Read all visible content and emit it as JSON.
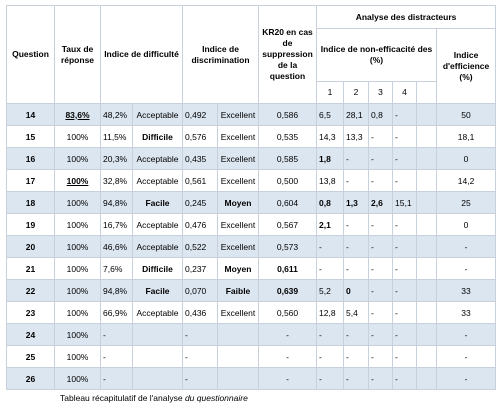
{
  "header": {
    "question": "Question",
    "taux": "Taux de réponse",
    "difficulte": "Indice de difficulté",
    "discrimination": "Indice de discrimination",
    "kr20": "KR20 en cas de suppression de la question",
    "distracteurs": "Analyse des distracteurs",
    "non_efficacite": "Indice de non-efficacité des (%)",
    "distractor_numbers": [
      "1",
      "2",
      "3",
      "4"
    ],
    "efficience": "Indice d'efficience (%)"
  },
  "table": {
    "rows": [
      [
        "14",
        "83,6%",
        "48,2%",
        "Acceptable",
        "0,492",
        "Excellent",
        "0,586",
        "6,5",
        "28,1",
        "0,8",
        "-",
        "50"
      ],
      [
        "15",
        "100%",
        "11,5%",
        "Difficile",
        "0,576",
        "Excellent",
        "0,535",
        "14,3",
        "13,3",
        "-",
        "-",
        "18,1"
      ],
      [
        "16",
        "100%",
        "20,3%",
        "Acceptable",
        "0,435",
        "Excellent",
        "0,585",
        "1,8",
        "-",
        "-",
        "-",
        "0"
      ],
      [
        "17",
        "100%",
        "32,8%",
        "Acceptable",
        "0,561",
        "Excellent",
        "0,500",
        "13,8",
        "-",
        "-",
        "-",
        "14,2"
      ],
      [
        "18",
        "100%",
        "94,8%",
        "Facile",
        "0,245",
        "Moyen",
        "0,604",
        "0,8",
        "1,3",
        "2,6",
        "15,1",
        "25"
      ],
      [
        "19",
        "100%",
        "16,7%",
        "Acceptable",
        "0,476",
        "Excellent",
        "0,567",
        "2,1",
        "-",
        "-",
        "-",
        "0"
      ],
      [
        "20",
        "100%",
        "46,6%",
        "Acceptable",
        "0,522",
        "Excellent",
        "0,573",
        "-",
        "-",
        "-",
        "-",
        "-"
      ],
      [
        "21",
        "100%",
        "7,6%",
        "Difficile",
        "0,237",
        "Moyen",
        "0,611",
        "-",
        "-",
        "-",
        "-",
        "-"
      ],
      [
        "22",
        "100%",
        "94,8%",
        "Facile",
        "0,070",
        "Faible",
        "0,639",
        "5,2",
        "0",
        "-",
        "-",
        "33"
      ],
      [
        "23",
        "100%",
        "66,9%",
        "Acceptable",
        "0,436",
        "Excellent",
        "0,560",
        "12,8",
        "5,4",
        "-",
        "-",
        "33"
      ],
      [
        "24",
        "100%",
        "-",
        null,
        "-",
        null,
        "-",
        "-",
        "-",
        "-",
        "-",
        "-"
      ],
      [
        "25",
        "100%",
        "-",
        null,
        "-",
        null,
        "-",
        "-",
        "-",
        "-",
        "-",
        "-"
      ],
      [
        "26",
        "100%",
        "-",
        null,
        "-",
        null,
        "-",
        "-",
        "-",
        "-",
        "-",
        "-"
      ]
    ]
  },
  "caption": {
    "text": "Tableau récapitulatif de l'analyse ",
    "emphasis": "du questionnaire"
  }
}
